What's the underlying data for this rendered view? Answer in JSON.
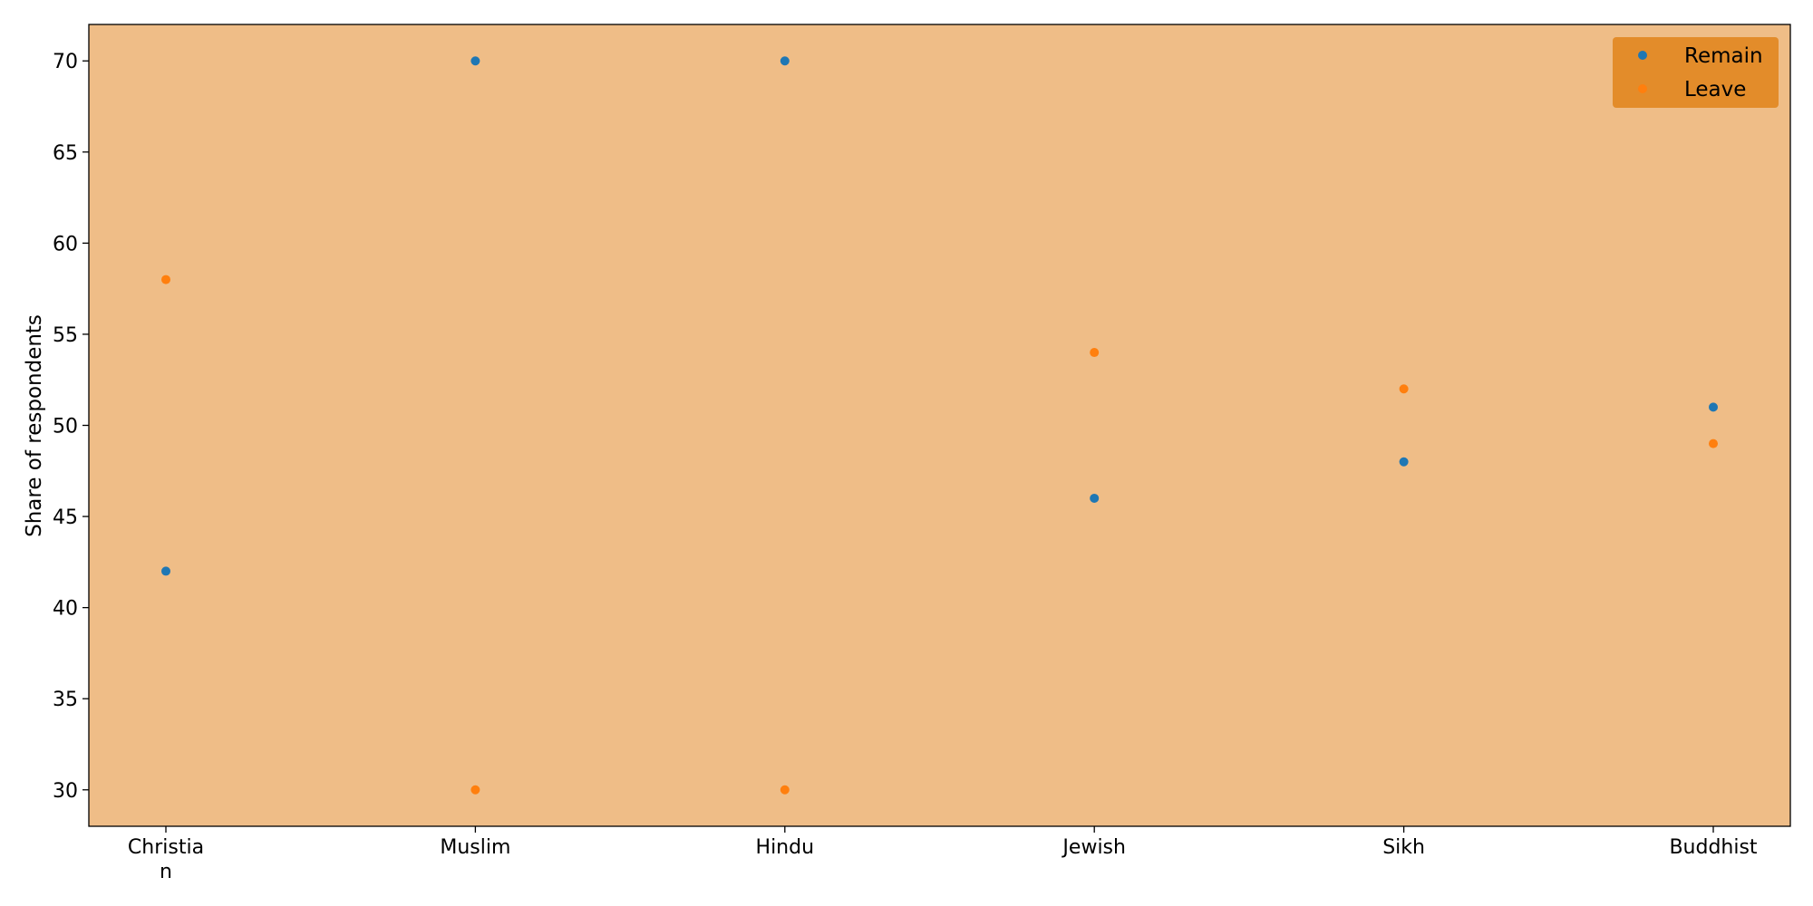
{
  "chart_data": {
    "type": "scatter",
    "categories": [
      "Christian",
      "Muslim",
      "Hindu",
      "Jewish",
      "Sikh",
      "Buddhist"
    ],
    "category_tick_lines": [
      [
        "Christia",
        "n"
      ],
      [
        "Muslim"
      ],
      [
        "Hindu"
      ],
      [
        "Jewish"
      ],
      [
        "Sikh"
      ],
      [
        "Buddhist"
      ]
    ],
    "series": [
      {
        "name": "Remain",
        "values": [
          42,
          70,
          70,
          46,
          48,
          51
        ],
        "color": "#1f77b4"
      },
      {
        "name": "Leave",
        "values": [
          58,
          30,
          30,
          54,
          52,
          49
        ],
        "color": "#ff7f0e"
      }
    ],
    "title": "",
    "xlabel": "",
    "ylabel": "Share of respondents",
    "ylim": [
      28,
      72
    ],
    "yticks": [
      30,
      35,
      40,
      45,
      50,
      55,
      60,
      65,
      70
    ],
    "grid": false,
    "legend_position": "top-right",
    "colors": {
      "plot_background": "#efbd87",
      "legend_background": "#e38c2a",
      "page_background": "#ffffff",
      "axis": "#000000"
    }
  }
}
